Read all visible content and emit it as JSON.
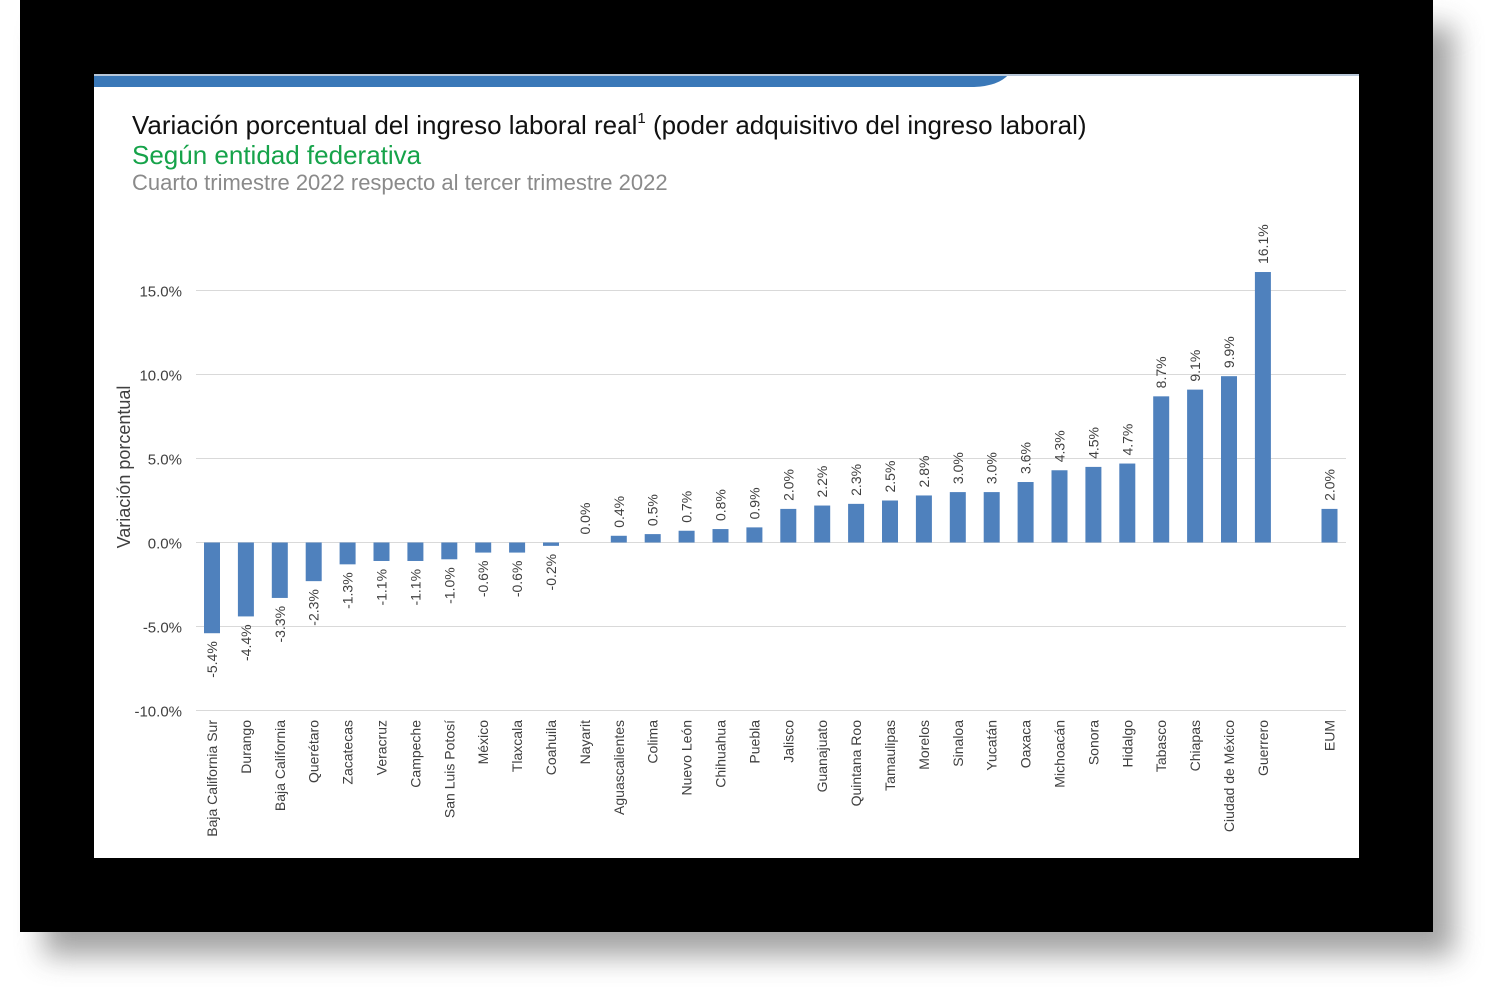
{
  "slide": {
    "title": "Variación porcentual del ingreso laboral real",
    "title_superscript": "1",
    "title_suffix": " (poder adquisitivo del ingreso laboral)",
    "subtitle": "Según entidad federativa",
    "period": "Cuarto trimestre 2022 respecto al tercer trimestre 2022"
  },
  "colors": {
    "bar": "#4f81bd",
    "subtitle": "#16a34a",
    "band": "#3a78b8",
    "frame": "#000000",
    "grid": "#d9d9d9"
  },
  "chart_data": {
    "type": "bar",
    "ylabel": "Variación porcentual",
    "ylim": [
      -10,
      15
    ],
    "yticks": [
      15,
      10,
      5,
      0,
      -5,
      -10
    ],
    "ytick_labels": [
      "15.0%",
      "10.0%",
      "5.0%",
      "0.0%",
      "-5.0%",
      "-10.0%"
    ],
    "grid": true,
    "categories": [
      "Baja California Sur",
      "Durango",
      "Baja California",
      "Querétaro",
      "Zacatecas",
      "Veracruz",
      "Campeche",
      "San Luis Potosí",
      "México",
      "Tlaxcala",
      "Coahuila",
      "Nayarit",
      "Aguascalientes",
      "Colima",
      "Nuevo León",
      "Chihuahua",
      "Puebla",
      "Jalisco",
      "Guanajuato",
      "Quintana Roo",
      "Tamaulipas",
      "Morelos",
      "Sinaloa",
      "Yucatán",
      "Oaxaca",
      "Michoacán",
      "Sonora",
      "Hidalgo",
      "Tabasco",
      "Chiapas",
      "Ciudad de México",
      "Guerrero",
      "EUM"
    ],
    "values": [
      -5.4,
      -4.4,
      -3.3,
      -2.3,
      -1.3,
      -1.1,
      -1.1,
      -1.0,
      -0.6,
      -0.6,
      -0.2,
      0.0,
      0.4,
      0.5,
      0.7,
      0.8,
      0.9,
      2.0,
      2.2,
      2.3,
      2.5,
      2.8,
      3.0,
      3.0,
      3.6,
      4.3,
      4.5,
      4.7,
      8.7,
      9.1,
      9.9,
      16.1,
      2.0
    ],
    "data_labels": [
      "-5.4%",
      "-4.4%",
      "-3.3%",
      "-2.3%",
      "-1.3%",
      "-1.1%",
      "-1.1%",
      "-1.0%",
      "-0.6%",
      "-0.6%",
      "-0.2%",
      "0.0%",
      "0.4%",
      "0.5%",
      "0.7%",
      "0.8%",
      "0.9%",
      "2.0%",
      "2.2%",
      "2.3%",
      "2.5%",
      "2.8%",
      "3.0%",
      "3.0%",
      "3.6%",
      "4.3%",
      "4.5%",
      "4.7%",
      "8.7%",
      "9.1%",
      "9.9%",
      "16.1%",
      "2.0%"
    ]
  }
}
